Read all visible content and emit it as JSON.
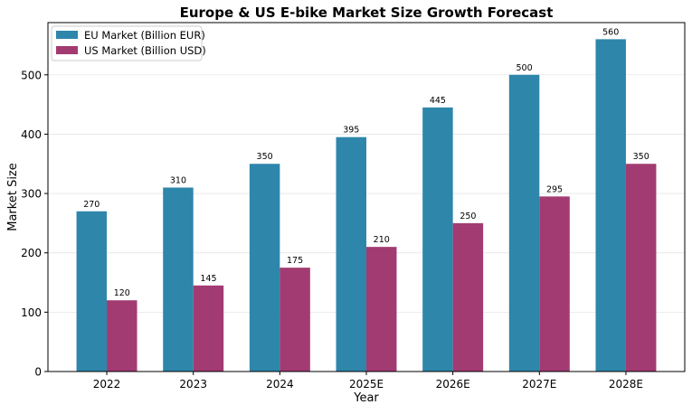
{
  "chart_data": {
    "type": "bar",
    "title": "Europe & US E-bike Market Size Growth Forecast",
    "xlabel": "Year",
    "ylabel": "Market Size",
    "categories": [
      "2022",
      "2023",
      "2024",
      "2025E",
      "2026E",
      "2027E",
      "2028E"
    ],
    "series": [
      {
        "name": "EU Market (Billion EUR)",
        "values": [
          270,
          310,
          350,
          395,
          445,
          500,
          560
        ],
        "color": "#2e86ab"
      },
      {
        "name": "US Market (Billion USD)",
        "values": [
          120,
          145,
          175,
          210,
          250,
          295,
          350
        ],
        "color": "#a23b72"
      }
    ],
    "ylim": [
      0,
      588
    ],
    "yticks": [
      0,
      100,
      200,
      300,
      400,
      500
    ],
    "grid": "horizontal",
    "legend": "top-left",
    "data_labels": true
  }
}
